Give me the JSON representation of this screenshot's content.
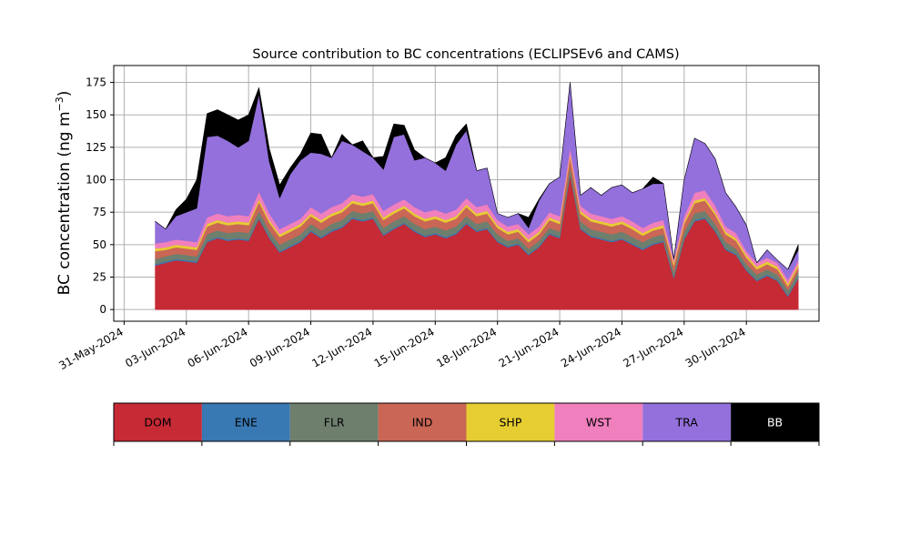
{
  "chart_data": {
    "type": "area",
    "stacked": true,
    "title": "Source contribution to BC concentrations (ECLIPSEv6 and CAMS)",
    "ylabel": "BC concentration (ng m",
    "ylabel_superscript": "−3",
    "ylabel_suffix": ")",
    "xlabel": "",
    "xlim": [
      "2024-05-30T12:00",
      "2024-07-03T12:00"
    ],
    "ylim": [
      -9,
      188
    ],
    "grid": true,
    "x_ticks": [
      "2024-05-31",
      "2024-06-03",
      "2024-06-06",
      "2024-06-09",
      "2024-06-12",
      "2024-06-15",
      "2024-06-18",
      "2024-06-21",
      "2024-06-24",
      "2024-06-27",
      "2024-06-30"
    ],
    "x_tick_labels": [
      "31-May-2024",
      "03-Jun-2024",
      "06-Jun-2024",
      "09-Jun-2024",
      "12-Jun-2024",
      "15-Jun-2024",
      "18-Jun-2024",
      "21-Jun-2024",
      "24-Jun-2024",
      "27-Jun-2024",
      "30-Jun-2024"
    ],
    "y_ticks": [
      0,
      25,
      50,
      75,
      100,
      125,
      150,
      175
    ],
    "y_tick_labels": [
      "0",
      "25",
      "50",
      "75",
      "100",
      "125",
      "150",
      "175"
    ],
    "legend_placement": "bottom",
    "x": [
      "2024-06-01T12:00",
      "2024-06-02T00:00",
      "2024-06-02T12:00",
      "2024-06-03T00:00",
      "2024-06-03T12:00",
      "2024-06-04T00:00",
      "2024-06-04T12:00",
      "2024-06-05T00:00",
      "2024-06-05T12:00",
      "2024-06-06T00:00",
      "2024-06-06T12:00",
      "2024-06-07T00:00",
      "2024-06-07T12:00",
      "2024-06-08T00:00",
      "2024-06-08T12:00",
      "2024-06-09T00:00",
      "2024-06-09T12:00",
      "2024-06-10T00:00",
      "2024-06-10T12:00",
      "2024-06-11T00:00",
      "2024-06-11T12:00",
      "2024-06-12T00:00",
      "2024-06-12T12:00",
      "2024-06-13T00:00",
      "2024-06-13T12:00",
      "2024-06-14T00:00",
      "2024-06-14T12:00",
      "2024-06-15T00:00",
      "2024-06-15T12:00",
      "2024-06-16T00:00",
      "2024-06-16T12:00",
      "2024-06-17T00:00",
      "2024-06-17T12:00",
      "2024-06-18T00:00",
      "2024-06-18T12:00",
      "2024-06-19T00:00",
      "2024-06-19T12:00",
      "2024-06-20T00:00",
      "2024-06-20T12:00",
      "2024-06-21T00:00",
      "2024-06-21T12:00",
      "2024-06-22T00:00",
      "2024-06-22T12:00",
      "2024-06-23T00:00",
      "2024-06-23T12:00",
      "2024-06-24T00:00",
      "2024-06-24T12:00",
      "2024-06-25T00:00",
      "2024-06-25T12:00",
      "2024-06-26T00:00",
      "2024-06-26T12:00",
      "2024-06-27T00:00",
      "2024-06-27T12:00",
      "2024-06-28T00:00",
      "2024-06-28T12:00",
      "2024-06-29T00:00",
      "2024-06-29T12:00",
      "2024-06-30T00:00",
      "2024-06-30T12:00",
      "2024-07-01T00:00",
      "2024-07-01T12:00",
      "2024-07-02T00:00",
      "2024-07-02T12:00"
    ],
    "series": [
      {
        "name": "DOM",
        "color": "#c62a35",
        "values": [
          34,
          36,
          38,
          37,
          36,
          52,
          55,
          53,
          54,
          53,
          70,
          55,
          44,
          48,
          52,
          60,
          55,
          60,
          63,
          70,
          68,
          70,
          57,
          62,
          66,
          60,
          56,
          58,
          55,
          58,
          66,
          60,
          62,
          52,
          48,
          50,
          42,
          48,
          58,
          55,
          104,
          62,
          56,
          54,
          52,
          54,
          50,
          46,
          50,
          52,
          24,
          54,
          68,
          70,
          60,
          46,
          42,
          30,
          22,
          26,
          22,
          10,
          24
        ]
      },
      {
        "name": "ENE",
        "color": "#3878b3",
        "values": [
          1,
          1,
          1,
          1,
          1,
          1,
          1,
          1,
          1,
          1,
          1,
          1,
          1,
          1,
          1,
          1,
          1,
          1,
          1,
          1,
          1,
          1,
          1,
          1,
          1,
          1,
          1,
          1,
          1,
          1,
          1,
          1,
          1,
          1,
          1,
          1,
          1,
          1,
          1,
          1,
          1,
          1,
          1,
          1,
          1,
          1,
          1,
          1,
          1,
          1,
          1,
          1,
          1,
          1,
          1,
          1,
          1,
          1,
          1,
          1,
          1,
          1,
          1
        ]
      },
      {
        "name": "FLR",
        "color": "#6e7f6e",
        "values": [
          4,
          4,
          4,
          4,
          4,
          5,
          5,
          5,
          5,
          5,
          5,
          5,
          5,
          5,
          5,
          5,
          5,
          5,
          5,
          5,
          5,
          5,
          5,
          5,
          5,
          5,
          5,
          5,
          5,
          5,
          5,
          5,
          5,
          5,
          4,
          4,
          4,
          4,
          4,
          4,
          5,
          5,
          5,
          5,
          5,
          5,
          5,
          5,
          5,
          5,
          4,
          5,
          5,
          5,
          5,
          5,
          4,
          4,
          4,
          4,
          4,
          4,
          4
        ]
      },
      {
        "name": "IND",
        "color": "#c96655",
        "values": [
          6,
          5,
          5,
          5,
          5,
          6,
          6,
          6,
          6,
          6,
          7,
          6,
          6,
          6,
          6,
          6,
          6,
          6,
          6,
          6,
          6,
          6,
          6,
          6,
          6,
          6,
          6,
          6,
          6,
          6,
          7,
          6,
          6,
          5,
          5,
          5,
          5,
          5,
          6,
          6,
          8,
          6,
          6,
          6,
          6,
          6,
          6,
          5,
          5,
          5,
          5,
          6,
          8,
          8,
          7,
          6,
          6,
          5,
          4,
          4,
          4,
          3,
          4
        ]
      },
      {
        "name": "SHP",
        "color": "#e6cd31",
        "values": [
          2,
          2,
          2,
          2,
          2,
          2,
          2,
          2,
          2,
          2,
          2,
          2,
          2,
          2,
          2,
          2,
          2,
          2,
          2,
          2,
          2,
          2,
          2,
          2,
          2,
          2,
          2,
          2,
          2,
          2,
          2,
          2,
          2,
          2,
          2,
          2,
          2,
          2,
          2,
          2,
          2,
          2,
          2,
          2,
          2,
          2,
          2,
          2,
          2,
          2,
          2,
          2,
          2,
          2,
          2,
          2,
          2,
          2,
          2,
          2,
          2,
          2,
          2
        ]
      },
      {
        "name": "WST",
        "color": "#f07fbd",
        "values": [
          4,
          4,
          4,
          4,
          4,
          5,
          5,
          5,
          5,
          5,
          6,
          5,
          4,
          4,
          4,
          5,
          5,
          5,
          5,
          5,
          5,
          5,
          5,
          5,
          5,
          5,
          5,
          5,
          5,
          5,
          5,
          5,
          5,
          4,
          4,
          4,
          4,
          4,
          4,
          4,
          5,
          4,
          4,
          4,
          4,
          4,
          4,
          4,
          4,
          4,
          3,
          4,
          6,
          6,
          5,
          4,
          4,
          3,
          3,
          3,
          3,
          3,
          3
        ]
      },
      {
        "name": "TRA",
        "color": "#9370db",
        "values": [
          17,
          10,
          18,
          22,
          26,
          62,
          60,
          58,
          52,
          58,
          75,
          40,
          24,
          38,
          45,
          42,
          46,
          38,
          48,
          38,
          35,
          28,
          32,
          52,
          50,
          36,
          42,
          36,
          33,
          50,
          52,
          28,
          28,
          5,
          7,
          8,
          5,
          20,
          22,
          30,
          50,
          8,
          20,
          16,
          24,
          24,
          22,
          30,
          30,
          28,
          0,
          28,
          42,
          36,
          36,
          26,
          20,
          20,
          0,
          6,
          2,
          8,
          8
        ]
      },
      {
        "name": "BB",
        "color": "#000000",
        "values": [
          0,
          0,
          5,
          10,
          22,
          18,
          20,
          20,
          21,
          20,
          5,
          10,
          10,
          5,
          5,
          15,
          15,
          0,
          5,
          0,
          8,
          0,
          10,
          10,
          7,
          8,
          0,
          0,
          10,
          7,
          5,
          0,
          0,
          0,
          0,
          0,
          8,
          1,
          0,
          0,
          0,
          0,
          0,
          0,
          0,
          0,
          0,
          0,
          5,
          0,
          0,
          0,
          0,
          0,
          0,
          0,
          0,
          0,
          0,
          0,
          0,
          0,
          4
        ]
      }
    ]
  }
}
